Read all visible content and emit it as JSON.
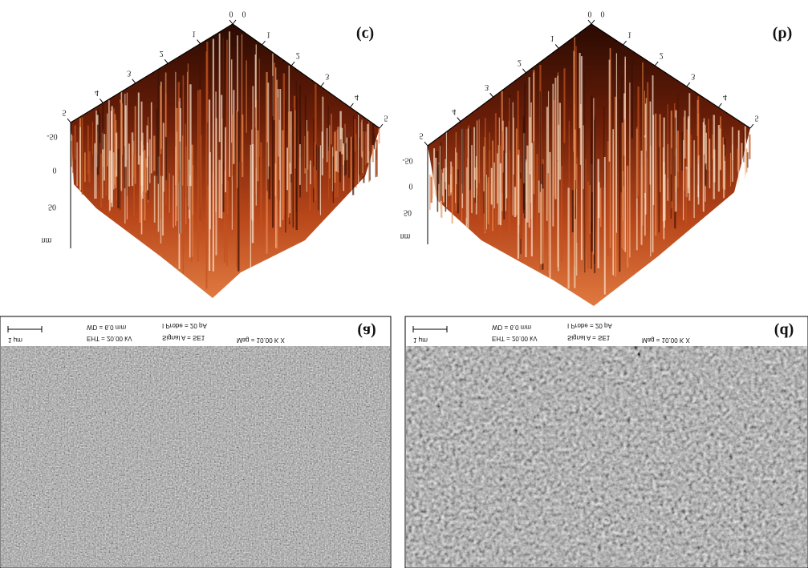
{
  "afm": [
    {
      "label": "(c)",
      "edge_a_ticks": [
        "0",
        "1",
        "2",
        "3",
        "4",
        "5"
      ],
      "edge_b_ticks": [
        "0",
        "1",
        "2",
        "3",
        "4",
        "5"
      ],
      "z_ticks": [
        "-50",
        "0",
        "50"
      ],
      "z_unit": "nm"
    },
    {
      "label": "(b)",
      "edge_a_ticks": [
        "0",
        "1",
        "2",
        "3",
        "4",
        "5"
      ],
      "edge_b_ticks": [
        "0",
        "1",
        "2",
        "3",
        "4",
        "5"
      ],
      "z_ticks": [
        "-50",
        "0",
        "50"
      ],
      "z_unit": "nm"
    }
  ],
  "sem": [
    {
      "label": "(a)",
      "scale_bar": "1 μm",
      "wd": "WD = 6.0 mm",
      "eht": "EHT = 20.00 kV",
      "probe": "I Probe = 20 pA",
      "signal": "Signal A = SE1",
      "mag": "Mag = 10.00 K X"
    },
    {
      "label": "(d)",
      "scale_bar": "1 μm",
      "wd": "WD = 6.0 mm",
      "eht": "EHT = 20.00 kV",
      "probe": "I Probe = 20 pA",
      "signal": "Signal A = SE1",
      "mag": "Mag = 10.00 K X"
    }
  ]
}
